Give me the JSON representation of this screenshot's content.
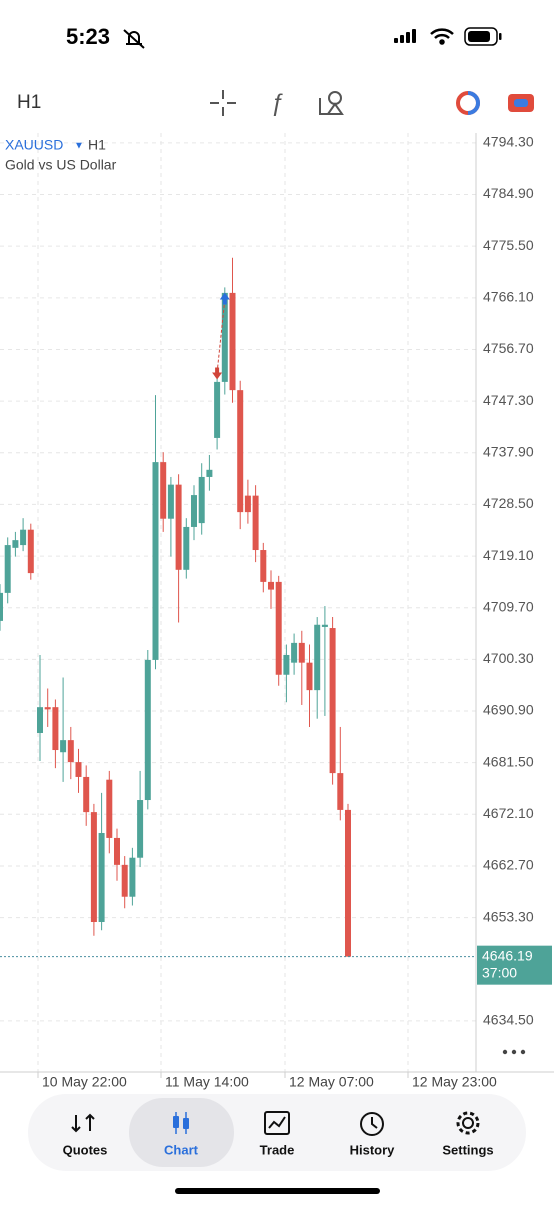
{
  "status_bar": {
    "time": "5:23"
  },
  "toolbar": {
    "timeframe": "H1"
  },
  "chart_data": {
    "type": "candlestick",
    "symbol": "XAUUSD",
    "timeframe": "H1",
    "description": "Gold vs US Dollar",
    "open": [
      4707.3,
      4712.4,
      4720.6,
      4721.1,
      4723.9,
      4686.9,
      4691.6,
      4691.6,
      4683.4,
      4685.6,
      4681.6,
      4678.9,
      4672.5,
      4652.5,
      4678.4,
      4667.8,
      4662.9,
      4657.1,
      4664.2,
      4674.7,
      4700.2,
      4736.2,
      4725.9,
      4732.1,
      4716.6,
      4724.4,
      4725.1,
      4733.5,
      4740.6,
      4750.8,
      4767.0,
      4749.3,
      4730.1,
      4730.1,
      4720.2,
      4714.4,
      4714.4,
      4697.5,
      4699.7,
      4703.3,
      4699.7,
      4694.7,
      4706.2,
      4706.0,
      4679.6,
      4672.9
    ],
    "high": [
      4714.0,
      4722.5,
      4723.5,
      4726.0,
      4725.0,
      4701.1,
      4695.0,
      4693.0,
      4697.0,
      4688.0,
      4684.0,
      4681.0,
      4674.0,
      4676.0,
      4680.0,
      4669.5,
      4664.5,
      4666.0,
      4680.0,
      4702.0,
      4748.4,
      4738.0,
      4733.5,
      4734.0,
      4726.0,
      4732.0,
      4736.0,
      4737.5,
      4752.0,
      4768.0,
      4773.4,
      4751.0,
      4733.0,
      4732.0,
      4721.5,
      4716.5,
      4715.5,
      4703.0,
      4705.0,
      4705.5,
      4703.0,
      4708.0,
      4710.0,
      4708.0,
      4688.0,
      4674.0
    ],
    "low": [
      4705.5,
      4710.5,
      4719.0,
      4720.0,
      4714.8,
      4681.8,
      4688.0,
      4680.5,
      4678.0,
      4678.5,
      4676.0,
      4670.0,
      4650.0,
      4651.0,
      4665.0,
      4660.0,
      4655.0,
      4655.5,
      4662.5,
      4673.0,
      4698.5,
      4723.5,
      4719.0,
      4707.0,
      4715.0,
      4722.0,
      4723.0,
      4731.0,
      4738.5,
      4748.5,
      4747.0,
      4724.0,
      4725.0,
      4718.0,
      4712.5,
      4709.5,
      4695.5,
      4692.5,
      4697.5,
      4692.0,
      4688.0,
      4689.5,
      4690.0,
      4677.5,
      4671.0,
      4646.2
    ],
    "close": [
      4712.4,
      4721.1,
      4722.0,
      4723.9,
      4716.0,
      4691.6,
      4691.2,
      4683.8,
      4685.6,
      4681.6,
      4678.9,
      4672.5,
      4652.5,
      4668.7,
      4667.8,
      4662.9,
      4657.1,
      4664.2,
      4674.7,
      4700.2,
      4736.2,
      4725.9,
      4732.1,
      4716.6,
      4724.4,
      4730.2,
      4733.5,
      4734.8,
      4750.8,
      4767.0,
      4749.3,
      4727.1,
      4727.1,
      4720.2,
      4714.4,
      4713.0,
      4697.5,
      4701.1,
      4703.3,
      4699.7,
      4694.7,
      4706.6,
      4706.6,
      4679.6,
      4672.9,
      4646.2
    ],
    "up_color": "#4ea398",
    "down_color": "#df564d",
    "ylim": [
      4625.2,
      4796.1
    ],
    "yticks": [
      {
        "value": 4794.3,
        "label": "4794.30"
      },
      {
        "value": 4784.9,
        "label": "4784.90"
      },
      {
        "value": 4775.5,
        "label": "4775.50"
      },
      {
        "value": 4766.1,
        "label": "4766.10"
      },
      {
        "value": 4756.7,
        "label": "4756.70"
      },
      {
        "value": 4747.3,
        "label": "4747.30"
      },
      {
        "value": 4737.9,
        "label": "4737.90"
      },
      {
        "value": 4728.5,
        "label": "4728.50"
      },
      {
        "value": 4719.1,
        "label": "4719.10"
      },
      {
        "value": 4709.7,
        "label": "4709.70"
      },
      {
        "value": 4700.3,
        "label": "4700.30"
      },
      {
        "value": 4690.9,
        "label": "4690.90"
      },
      {
        "value": 4681.5,
        "label": "4681.50"
      },
      {
        "value": 4672.1,
        "label": "4672.10"
      },
      {
        "value": 4662.7,
        "label": "4662.70"
      },
      {
        "value": 4653.3,
        "label": "4653.30"
      },
      {
        "value": 4634.5,
        "label": "4634.50"
      }
    ],
    "grid": true,
    "xtick_labels": [
      "10 May 22:00",
      "11 May 14:00",
      "12 May 07:00",
      "12 May 23:00"
    ],
    "last_price": {
      "value": 4646.19,
      "countdown": "37:00"
    },
    "buy_marker": 4765.8,
    "sell_marker": 4752.5
  },
  "tab_bar": {
    "tabs": [
      "Quotes",
      "Chart",
      "Trade",
      "History",
      "Settings"
    ],
    "active": 1
  }
}
